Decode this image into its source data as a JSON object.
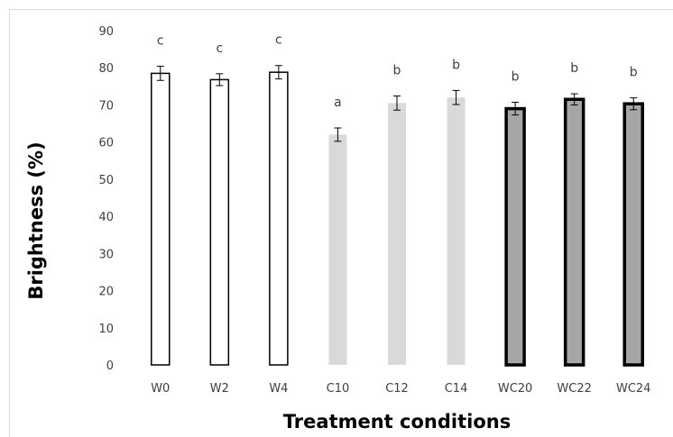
{
  "chart_data": {
    "type": "bar",
    "categories": [
      "W0",
      "W2",
      "W4",
      "C10",
      "C12",
      "C14",
      "WC20",
      "WC22",
      "WC24"
    ],
    "values": [
      78.5,
      76.8,
      78.8,
      62.0,
      70.5,
      72.0,
      69.0,
      71.5,
      70.3
    ],
    "errors": [
      1.9,
      1.6,
      1.8,
      1.8,
      1.9,
      1.9,
      1.7,
      1.5,
      1.6
    ],
    "significance_letters": [
      "c",
      "c",
      "c",
      "a",
      "b",
      "b",
      "b",
      "b",
      "b"
    ],
    "groups": [
      {
        "members": [
          0,
          1,
          2
        ],
        "fill": "#ffffff",
        "stroke": "#000000",
        "stroke_weight": "thin"
      },
      {
        "members": [
          3,
          4,
          5
        ],
        "fill": "#d9d9d9",
        "stroke": "none",
        "stroke_weight": "none"
      },
      {
        "members": [
          6,
          7,
          8
        ],
        "fill": "#a6a6a6",
        "stroke": "#000000",
        "stroke_weight": "thick"
      }
    ],
    "xlabel": "Treatment conditions",
    "ylabel": "Brightness (%)",
    "ylim": [
      0,
      90
    ],
    "yticks": [
      0,
      10,
      20,
      30,
      40,
      50,
      60,
      70,
      80,
      90
    ],
    "grid": false,
    "legend": "none"
  }
}
